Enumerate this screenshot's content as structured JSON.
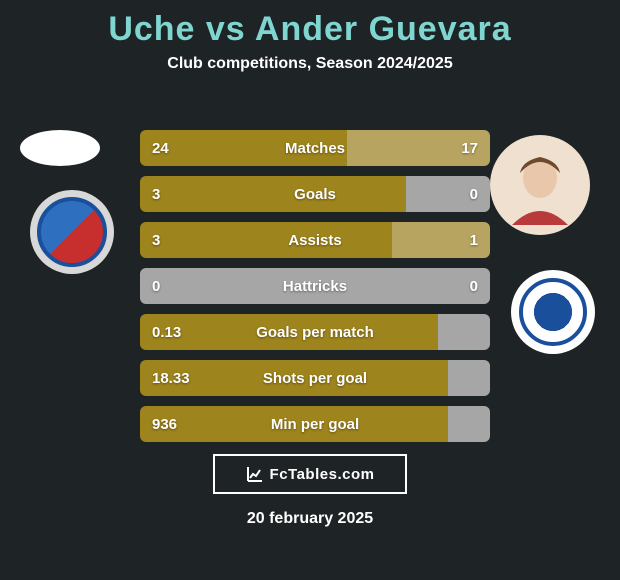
{
  "title": "Uche vs Ander Guevara",
  "subtitle": "Club competitions, Season 2024/2025",
  "brand": "FcTables.com",
  "date": "20 february 2025",
  "colors": {
    "seg_dominant": "#9e841c",
    "seg_weak": "#b6a460",
    "seg_none": "#a6a6a6",
    "text": "#ffffff",
    "title": "#7fd6d0"
  },
  "stats": [
    {
      "label": "Matches",
      "left_val": "24",
      "right_val": "17",
      "left_pct": 0.59,
      "right_pct": 0.41,
      "left_color": "#9e841c",
      "right_color": "#b6a460"
    },
    {
      "label": "Goals",
      "left_val": "3",
      "right_val": "0",
      "left_pct": 0.76,
      "right_pct": 0.24,
      "left_color": "#9e841c",
      "right_color": "#a6a6a6"
    },
    {
      "label": "Assists",
      "left_val": "3",
      "right_val": "1",
      "left_pct": 0.72,
      "right_pct": 0.28,
      "left_color": "#9e841c",
      "right_color": "#b6a460"
    },
    {
      "label": "Hattricks",
      "left_val": "0",
      "right_val": "0",
      "left_pct": 0.5,
      "right_pct": 0.5,
      "left_color": "#a6a6a6",
      "right_color": "#a6a6a6"
    },
    {
      "label": "Goals per match",
      "left_val": "0.13",
      "right_val": "",
      "left_pct": 0.85,
      "right_pct": 0.15,
      "left_color": "#9e841c",
      "right_color": "#a6a6a6"
    },
    {
      "label": "Shots per goal",
      "left_val": "18.33",
      "right_val": "",
      "left_pct": 0.88,
      "right_pct": 0.12,
      "left_color": "#9e841c",
      "right_color": "#a6a6a6"
    },
    {
      "label": "Min per goal",
      "left_val": "936",
      "right_val": "",
      "left_pct": 0.88,
      "right_pct": 0.12,
      "left_color": "#9e841c",
      "right_color": "#a6a6a6"
    }
  ]
}
